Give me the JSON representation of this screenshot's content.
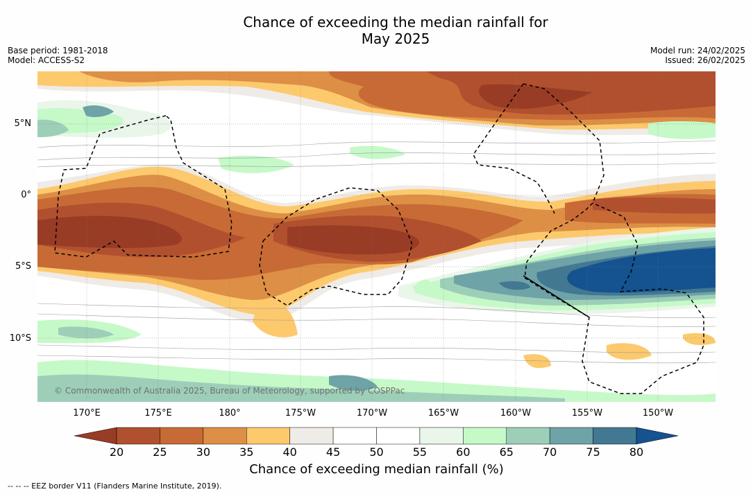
{
  "header": {
    "title_line1": "Chance of exceeding the median rainfall for",
    "title_line2": "May 2025",
    "base_period": "Base period: 1981-2018",
    "model": "Model: ACCESS-S2",
    "model_run": "Model run: 24/02/2025",
    "issued": "Issued: 26/02/2025"
  },
  "map": {
    "lat_labels": [
      "5°N",
      "0°",
      "5°S",
      "10°S"
    ],
    "lon_labels": [
      "170°E",
      "175°E",
      "180°",
      "175°W",
      "170°W",
      "165°W",
      "160°W",
      "155°W",
      "150°W"
    ],
    "copyright": "© Commonwealth of Australia 2025, Bureau of Meteorology, supported by COSPPac",
    "regions": [
      {
        "band": "north",
        "level": "20-30",
        "color": "#b1502f"
      },
      {
        "band": "equator",
        "level": "20-30",
        "color": "#993c25"
      },
      {
        "band": "south-east",
        "level": "75-80+",
        "color": "#155290"
      }
    ]
  },
  "colorbar": {
    "ticks": [
      "20",
      "25",
      "30",
      "35",
      "40",
      "45",
      "50",
      "55",
      "60",
      "65",
      "70",
      "75",
      "80"
    ],
    "colors": [
      "#b1502f",
      "#c86a35",
      "#dd8f45",
      "#fdc96d",
      "#efebe7",
      "#ffffff",
      "#ffffff",
      "#e9f6e9",
      "#c6f9c8",
      "#9dcfb8",
      "#6ea3a7",
      "#427892"
    ],
    "under_color": "#993c25",
    "over_color": "#155290",
    "label": "Chance of exceeding median rainfall (%)"
  },
  "legend": {
    "footnote": "--  --  -- EEZ border V11 (Flanders Marine Institute, 2019)."
  }
}
